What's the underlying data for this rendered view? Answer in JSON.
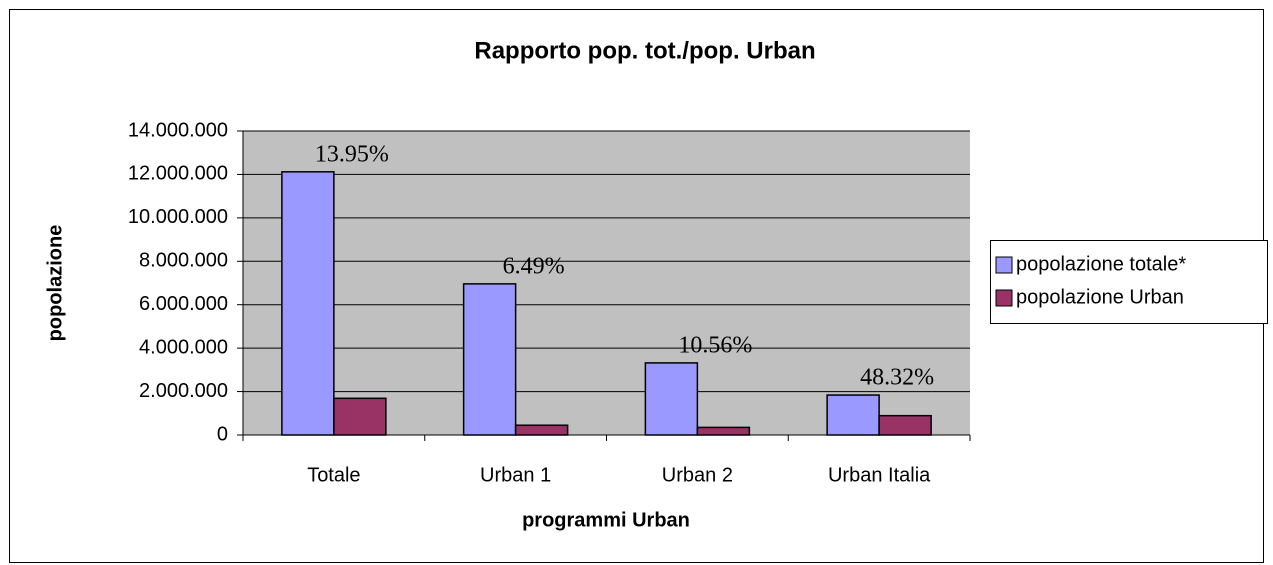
{
  "chart_data": {
    "type": "bar",
    "title": "Rapporto pop. tot./pop. Urban",
    "x_label": "programmi Urban",
    "y_label": "popolazione",
    "categories": [
      "Totale",
      "Urban 1",
      "Urban 2",
      "Urban Italia"
    ],
    "series": [
      {
        "name": "popolazione totale*",
        "color": "#9999ff",
        "values": [
          12120000,
          6960000,
          3320000,
          1840000
        ]
      },
      {
        "name": "popolazione Urban",
        "color": "#993366",
        "values": [
          1690000,
          450000,
          350000,
          890000
        ]
      }
    ],
    "annotations": [
      "13.95%",
      "6.49%",
      "10.56%",
      "48.32%"
    ],
    "ylim": [
      0,
      14000000
    ],
    "yticks": [
      0,
      {
        "value": 2000000,
        "label": "2.000.000"
      },
      {
        "value": 4000000,
        "label": "4.000.000"
      },
      {
        "value": 6000000,
        "label": "6.000.000"
      },
      {
        "value": 8000000,
        "label": "8.000.000"
      },
      {
        "value": 10000000,
        "label": "10.000.000"
      },
      {
        "value": 12000000,
        "label": "12.000.000"
      },
      {
        "value": 14000000,
        "label": "14.000.000"
      }
    ],
    "grid": true,
    "legend": "right"
  }
}
